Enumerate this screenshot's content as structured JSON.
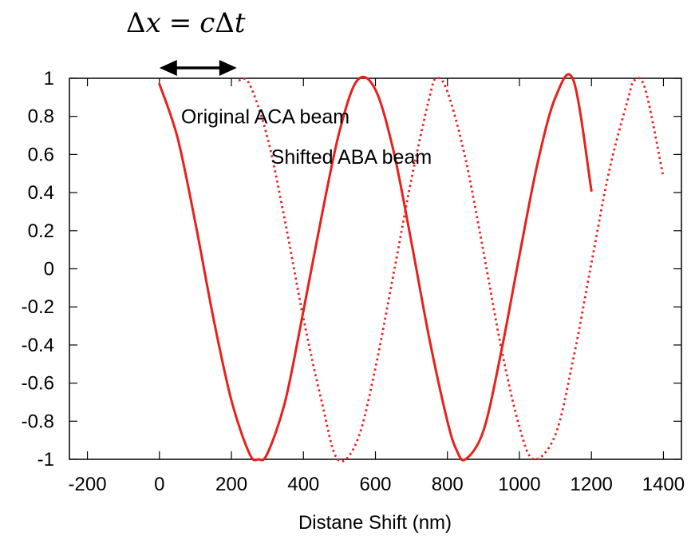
{
  "chart_data": {
    "type": "line",
    "title": "",
    "xlabel": "Distane Shift (nm)",
    "ylabel": "",
    "xlim": [
      -250,
      1450
    ],
    "ylim": [
      -1,
      1
    ],
    "x_ticks": [
      "-200",
      "0",
      "200",
      "400",
      "600",
      "800",
      "1000",
      "1200",
      "1400"
    ],
    "y_ticks": [
      "1",
      "0.8",
      "0.6",
      "0.4",
      "0.2",
      "0",
      "-0.2",
      "-0.4",
      "-0.6",
      "-0.8",
      "-1"
    ],
    "grid": false,
    "legend": "none",
    "series": [
      {
        "color": "#e8201c",
        "dash": "solid",
        "x": [
          0,
          50,
          100,
          150,
          200,
          250,
          275,
          300,
          350,
          400,
          450,
          500,
          550,
          600,
          650,
          700,
          750,
          800,
          825,
          850,
          900,
          950,
          1000,
          1050,
          1100,
          1150,
          1200
        ],
        "y": [
          0.97,
          0.69,
          0.24,
          -0.26,
          -0.69,
          -0.97,
          -1.0,
          -0.97,
          -0.69,
          -0.22,
          0.27,
          0.72,
          0.99,
          0.94,
          0.62,
          0.14,
          -0.37,
          -0.8,
          -0.95,
          -1.0,
          -0.85,
          -0.43,
          0.07,
          0.55,
          0.9,
          0.99,
          0.41
        ]
      },
      {
        "color": "#e8201c",
        "dash": "dotted",
        "x": [
          220,
          250,
          300,
          350,
          400,
          450,
          495,
          550,
          600,
          650,
          700,
          750,
          770,
          800,
          850,
          900,
          950,
          1000,
          1040,
          1100,
          1150,
          1200,
          1250,
          1300,
          1320,
          1350,
          1400
        ],
        "y": [
          0.99,
          0.97,
          0.69,
          0.24,
          -0.26,
          -0.69,
          -1.0,
          -0.9,
          -0.52,
          -0.03,
          0.47,
          0.9,
          1.0,
          0.93,
          0.58,
          0.09,
          -0.42,
          -0.83,
          -1.0,
          -0.87,
          -0.47,
          0.03,
          0.52,
          0.88,
          0.99,
          0.94,
          0.48
        ]
      }
    ],
    "annotations": [
      {
        "text": "Original ACA beam",
        "x": 60,
        "y": 0.8
      },
      {
        "text": "Shifted ABA beam",
        "x": 310,
        "y": 0.59
      }
    ],
    "arrow": {
      "x_from": 0,
      "x_to": 215,
      "y_above": 1
    }
  },
  "equation": {
    "delta1": "Δ",
    "x": "x",
    "equals": "=",
    "c": "c",
    "delta2": "Δ",
    "t": "t"
  }
}
